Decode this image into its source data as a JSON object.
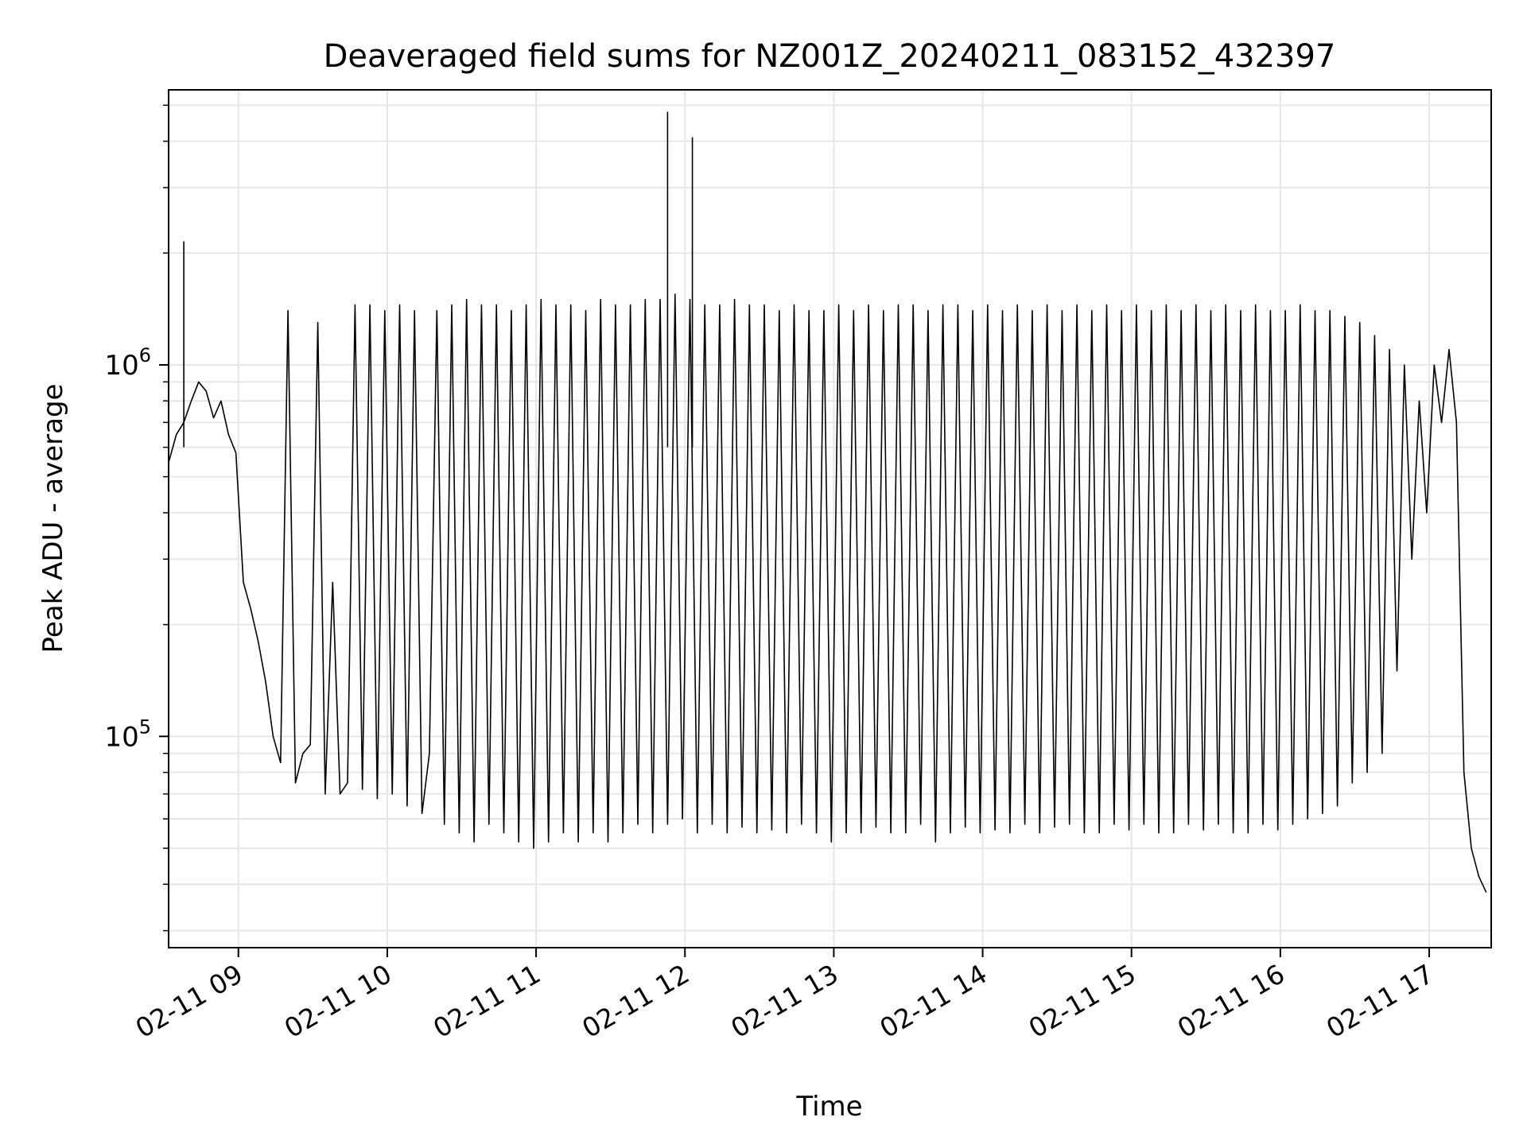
{
  "chart_data": {
    "type": "line",
    "title": "Deaveraged field sums for NZ001Z_20240211_083152_432397",
    "xlabel": "Time",
    "ylabel": "Peak ADU - average",
    "x_axis": "datetime",
    "xlim": [
      "2024-02-11 08:31:52",
      "2024-02-11 17:25:00"
    ],
    "xticks": [
      {
        "value": "2024-02-11 09:00",
        "label": "02-11 09"
      },
      {
        "value": "2024-02-11 10:00",
        "label": "02-11 10"
      },
      {
        "value": "2024-02-11 11:00",
        "label": "02-11 11"
      },
      {
        "value": "2024-02-11 12:00",
        "label": "02-11 12"
      },
      {
        "value": "2024-02-11 13:00",
        "label": "02-11 13"
      },
      {
        "value": "2024-02-11 14:00",
        "label": "02-11 14"
      },
      {
        "value": "2024-02-11 15:00",
        "label": "02-11 15"
      },
      {
        "value": "2024-02-11 16:00",
        "label": "02-11 16"
      },
      {
        "value": "2024-02-11 17:00",
        "label": "02-11 17"
      }
    ],
    "y_scale": "log",
    "ylim": [
      27000,
      5500000
    ],
    "yticks": [
      {
        "value": 100000,
        "base": "10",
        "exp": "5"
      },
      {
        "value": 1000000,
        "base": "10",
        "exp": "6"
      }
    ],
    "grid": true,
    "legend": "none",
    "line_color": "#000000",
    "grid_color": "#e6e6e6",
    "series": [
      {
        "x": [
          "2024-02-11 08:32",
          "2024-02-11 08:35",
          "2024-02-11 08:38",
          "2024-02-11 08:41",
          "2024-02-11 08:44",
          "2024-02-11 08:47",
          "2024-02-11 08:50",
          "2024-02-11 08:53",
          "2024-02-11 08:56",
          "2024-02-11 08:59",
          "2024-02-11 09:02",
          "2024-02-11 09:05",
          "2024-02-11 09:08",
          "2024-02-11 09:11",
          "2024-02-11 09:14",
          "2024-02-11 09:17",
          "2024-02-11 09:20",
          "2024-02-11 09:23",
          "2024-02-11 09:26",
          "2024-02-11 09:29",
          "2024-02-11 09:32",
          "2024-02-11 09:35",
          "2024-02-11 09:38",
          "2024-02-11 09:41",
          "2024-02-11 09:44",
          "2024-02-11 09:47",
          "2024-02-11 09:50",
          "2024-02-11 09:53",
          "2024-02-11 09:56",
          "2024-02-11 09:59",
          "2024-02-11 10:02",
          "2024-02-11 10:05",
          "2024-02-11 10:08",
          "2024-02-11 10:11",
          "2024-02-11 10:14",
          "2024-02-11 10:17",
          "2024-02-11 10:20",
          "2024-02-11 10:23",
          "2024-02-11 10:26",
          "2024-02-11 10:29",
          "2024-02-11 10:32",
          "2024-02-11 10:35",
          "2024-02-11 10:38",
          "2024-02-11 10:41",
          "2024-02-11 10:44",
          "2024-02-11 10:47",
          "2024-02-11 10:50",
          "2024-02-11 10:53",
          "2024-02-11 10:56",
          "2024-02-11 10:59",
          "2024-02-11 11:02",
          "2024-02-11 11:05",
          "2024-02-11 11:08",
          "2024-02-11 11:11",
          "2024-02-11 11:14",
          "2024-02-11 11:17",
          "2024-02-11 11:20",
          "2024-02-11 11:23",
          "2024-02-11 11:26",
          "2024-02-11 11:29",
          "2024-02-11 11:32",
          "2024-02-11 11:35",
          "2024-02-11 11:38",
          "2024-02-11 11:41",
          "2024-02-11 11:44",
          "2024-02-11 11:47",
          "2024-02-11 11:50",
          "2024-02-11 11:53",
          "2024-02-11 11:56",
          "2024-02-11 11:59",
          "2024-02-11 12:02",
          "2024-02-11 12:05",
          "2024-02-11 12:08",
          "2024-02-11 12:11",
          "2024-02-11 12:14",
          "2024-02-11 12:17",
          "2024-02-11 12:20",
          "2024-02-11 12:23",
          "2024-02-11 12:26",
          "2024-02-11 12:29",
          "2024-02-11 12:32",
          "2024-02-11 12:35",
          "2024-02-11 12:38",
          "2024-02-11 12:41",
          "2024-02-11 12:44",
          "2024-02-11 12:47",
          "2024-02-11 12:50",
          "2024-02-11 12:53",
          "2024-02-11 12:56",
          "2024-02-11 12:59",
          "2024-02-11 13:02",
          "2024-02-11 13:05",
          "2024-02-11 13:08",
          "2024-02-11 13:11",
          "2024-02-11 13:14",
          "2024-02-11 13:17",
          "2024-02-11 13:20",
          "2024-02-11 13:23",
          "2024-02-11 13:26",
          "2024-02-11 13:29",
          "2024-02-11 13:32",
          "2024-02-11 13:35",
          "2024-02-11 13:38",
          "2024-02-11 13:41",
          "2024-02-11 13:44",
          "2024-02-11 13:47",
          "2024-02-11 13:50",
          "2024-02-11 13:53",
          "2024-02-11 13:56",
          "2024-02-11 13:59",
          "2024-02-11 14:02",
          "2024-02-11 14:05",
          "2024-02-11 14:08",
          "2024-02-11 14:11",
          "2024-02-11 14:14",
          "2024-02-11 14:17",
          "2024-02-11 14:20",
          "2024-02-11 14:23",
          "2024-02-11 14:26",
          "2024-02-11 14:29",
          "2024-02-11 14:32",
          "2024-02-11 14:35",
          "2024-02-11 14:38",
          "2024-02-11 14:41",
          "2024-02-11 14:44",
          "2024-02-11 14:47",
          "2024-02-11 14:50",
          "2024-02-11 14:53",
          "2024-02-11 14:56",
          "2024-02-11 14:59",
          "2024-02-11 15:02",
          "2024-02-11 15:05",
          "2024-02-11 15:08",
          "2024-02-11 15:11",
          "2024-02-11 15:14",
          "2024-02-11 15:17",
          "2024-02-11 15:20",
          "2024-02-11 15:23",
          "2024-02-11 15:26",
          "2024-02-11 15:29",
          "2024-02-11 15:32",
          "2024-02-11 15:35",
          "2024-02-11 15:38",
          "2024-02-11 15:41",
          "2024-02-11 15:44",
          "2024-02-11 15:47",
          "2024-02-11 15:50",
          "2024-02-11 15:53",
          "2024-02-11 15:56",
          "2024-02-11 15:59",
          "2024-02-11 16:02",
          "2024-02-11 16:05",
          "2024-02-11 16:08",
          "2024-02-11 16:11",
          "2024-02-11 16:14",
          "2024-02-11 16:17",
          "2024-02-11 16:20",
          "2024-02-11 16:23",
          "2024-02-11 16:26",
          "2024-02-11 16:29",
          "2024-02-11 16:32",
          "2024-02-11 16:35",
          "2024-02-11 16:38",
          "2024-02-11 16:41",
          "2024-02-11 16:44",
          "2024-02-11 16:47",
          "2024-02-11 16:50",
          "2024-02-11 16:53",
          "2024-02-11 16:56",
          "2024-02-11 16:59",
          "2024-02-11 17:02",
          "2024-02-11 17:05",
          "2024-02-11 17:08",
          "2024-02-11 17:11",
          "2024-02-11 17:14",
          "2024-02-11 17:17",
          "2024-02-11 17:20",
          "2024-02-11 17:23"
        ],
        "y": [
          550000,
          650000,
          700000,
          800000,
          900000,
          850000,
          720000,
          800000,
          650000,
          580000,
          260000,
          220000,
          180000,
          140000,
          100000,
          85000,
          1400000,
          75000,
          90000,
          95000,
          1300000,
          70000,
          260000,
          70000,
          75000,
          1450000,
          72000,
          1450000,
          68000,
          1400000,
          70000,
          1450000,
          65000,
          1400000,
          62000,
          90000,
          1400000,
          58000,
          1450000,
          55000,
          1500000,
          52000,
          1450000,
          58000,
          1450000,
          55000,
          1400000,
          52000,
          1450000,
          50000,
          1500000,
          52000,
          1450000,
          55000,
          1450000,
          52000,
          1400000,
          55000,
          1500000,
          52000,
          1450000,
          55000,
          1450000,
          58000,
          1500000,
          55000,
          1500000,
          58000,
          1550000,
          60000,
          1500000,
          55000,
          1450000,
          58000,
          1450000,
          55000,
          1500000,
          57000,
          1450000,
          55000,
          1450000,
          56000,
          1400000,
          55000,
          1450000,
          58000,
          1400000,
          55000,
          1400000,
          52000,
          1450000,
          55000,
          1400000,
          55000,
          1450000,
          57000,
          1400000,
          55000,
          1450000,
          55000,
          1450000,
          58000,
          1400000,
          52000,
          1450000,
          55000,
          1450000,
          57000,
          1400000,
          55000,
          1450000,
          56000,
          1400000,
          55000,
          1450000,
          58000,
          1400000,
          55000,
          1450000,
          57000,
          1400000,
          58000,
          1450000,
          55000,
          1400000,
          55000,
          1450000,
          58000,
          1400000,
          56000,
          1450000,
          58000,
          1400000,
          55000,
          1450000,
          55000,
          1400000,
          58000,
          1450000,
          56000,
          1400000,
          58000,
          1450000,
          55000,
          1400000,
          55000,
          1450000,
          58000,
          1400000,
          56000,
          1400000,
          58000,
          1450000,
          60000,
          1400000,
          62000,
          1400000,
          65000,
          1350000,
          75000,
          1300000,
          80000,
          1200000,
          90000,
          1100000,
          150000,
          1000000,
          300000,
          800000,
          400000,
          1000000,
          700000,
          1100000,
          700000,
          80000,
          50000,
          42000,
          38000
        ]
      }
    ],
    "annotations": [
      {
        "x": "2024-02-11 08:38",
        "y": 2150000,
        "note": "spike"
      },
      {
        "x": "2024-02-11 11:53",
        "y": 4800000,
        "note": "spike"
      },
      {
        "x": "2024-02-11 12:03",
        "y": 4100000,
        "note": "spike"
      }
    ]
  }
}
